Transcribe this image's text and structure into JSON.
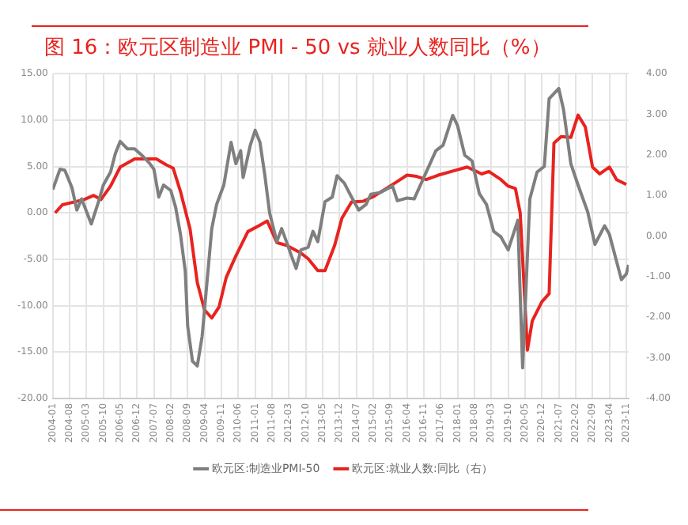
{
  "chart_data": {
    "type": "line",
    "title": "图 16：欧元区制造业 PMI - 50 vs 就业人数同比（%）",
    "xlim": [
      "2004-01",
      "2023-12"
    ],
    "xticks": [
      "2004-01",
      "2004-08",
      "2005-03",
      "2005-10",
      "2006-05",
      "2006-12",
      "2007-07",
      "2008-02",
      "2008-09",
      "2009-04",
      "2009-11",
      "2010-06",
      "2011-01",
      "2011-08",
      "2012-03",
      "2012-10",
      "2013-05",
      "2013-12",
      "2014-07",
      "2015-02",
      "2015-09",
      "2016-04",
      "2016-11",
      "2017-06",
      "2018-01",
      "2018-08",
      "2019-03",
      "2019-10",
      "2020-05",
      "2020-12",
      "2021-07",
      "2022-02",
      "2022-09",
      "2023-04",
      "2023-11"
    ],
    "ylim": [
      -20,
      15
    ],
    "yticks": [
      {
        "value": -20,
        "label": "-20.00"
      },
      {
        "value": -15,
        "label": "-15.00"
      },
      {
        "value": -10,
        "label": "-10.00"
      },
      {
        "value": -5,
        "label": "-5.00"
      },
      {
        "value": 0,
        "label": "0.00"
      },
      {
        "value": 5,
        "label": "5.00"
      },
      {
        "value": 10,
        "label": "10.00"
      },
      {
        "value": 15,
        "label": "15.00"
      }
    ],
    "y2lim": [
      -4,
      4
    ],
    "y2ticks": [
      {
        "value": -4,
        "label": "-4.00"
      },
      {
        "value": -3,
        "label": "-3.00"
      },
      {
        "value": -2,
        "label": "-2.00"
      },
      {
        "value": -1,
        "label": "-1.00"
      },
      {
        "value": 0,
        "label": "0.00"
      },
      {
        "value": 1,
        "label": "1.00"
      },
      {
        "value": 2,
        "label": "2.00"
      },
      {
        "value": 3,
        "label": "3.00"
      },
      {
        "value": 4,
        "label": "4.00"
      }
    ],
    "grid": true,
    "legend": "bottom",
    "marker": "none",
    "line_style": "solid",
    "series": [
      {
        "name": "欧元区:制造业PMI-50",
        "color": "#7f7f7f",
        "x": [
          "2004-01",
          "2004-04",
          "2004-06",
          "2004-09",
          "2004-11",
          "2005-01",
          "2005-05",
          "2005-08",
          "2005-10",
          "2006-01",
          "2006-03",
          "2006-05",
          "2006-08",
          "2006-11",
          "2007-02",
          "2007-05",
          "2007-07",
          "2007-09",
          "2007-11",
          "2008-02",
          "2008-04",
          "2008-06",
          "2008-08",
          "2008-09",
          "2008-11",
          "2009-01",
          "2009-03",
          "2009-05",
          "2009-07",
          "2009-09",
          "2009-12",
          "2010-03",
          "2010-05",
          "2010-07",
          "2010-08",
          "2010-11",
          "2011-01",
          "2011-03",
          "2011-05",
          "2011-07",
          "2011-10",
          "2011-12",
          "2012-02",
          "2012-04",
          "2012-06",
          "2012-08",
          "2012-11",
          "2013-01",
          "2013-03",
          "2013-06",
          "2013-09",
          "2013-11",
          "2014-02",
          "2014-05",
          "2014-08",
          "2014-11",
          "2015-01",
          "2015-05",
          "2015-10",
          "2015-12",
          "2016-04",
          "2016-07",
          "2016-12",
          "2017-04",
          "2017-07",
          "2017-11",
          "2018-01",
          "2018-04",
          "2018-07",
          "2018-10",
          "2019-01",
          "2019-04",
          "2019-07",
          "2019-10",
          "2020-02",
          "2020-04",
          "2020-07",
          "2020-10",
          "2021-01",
          "2021-03",
          "2021-07",
          "2021-09",
          "2021-12",
          "2022-03",
          "2022-07",
          "2022-10",
          "2023-02",
          "2023-04",
          "2023-09",
          "2023-11",
          "2023-12"
        ],
        "values": [
          2.5,
          4.7,
          4.6,
          2.7,
          0.3,
          1.5,
          -1.2,
          1.2,
          3.0,
          4.4,
          6.4,
          7.7,
          6.9,
          6.9,
          6.2,
          5.4,
          4.7,
          1.7,
          3.0,
          2.4,
          0.6,
          -2.3,
          -6.3,
          -12.2,
          -16.0,
          -16.5,
          -13.3,
          -7.5,
          -1.7,
          0.9,
          3.0,
          7.6,
          5.3,
          6.7,
          3.8,
          7.3,
          8.9,
          7.6,
          4.1,
          0.0,
          -3.1,
          -1.7,
          -3.1,
          -4.6,
          -6.0,
          -4.0,
          -3.7,
          -2.0,
          -3.1,
          1.2,
          1.7,
          4.0,
          3.2,
          1.7,
          0.3,
          0.9,
          2.0,
          2.2,
          2.9,
          1.3,
          1.6,
          1.5,
          4.4,
          6.7,
          7.3,
          10.5,
          9.4,
          6.2,
          5.6,
          2.1,
          0.9,
          -2.0,
          -2.6,
          -4.0,
          -0.8,
          -16.7,
          1.5,
          4.4,
          5.0,
          12.3,
          13.4,
          11.1,
          5.3,
          3.0,
          0.1,
          -3.4,
          -1.4,
          -2.3,
          -7.2,
          -6.6,
          -5.6
        ]
      },
      {
        "name": "欧元区:就业人数:同比（右）",
        "color": "#e8231f",
        "axis": "y2",
        "x": [
          "2004-02",
          "2004-05",
          "2004-10",
          "2005-02",
          "2005-06",
          "2005-09",
          "2006-01",
          "2006-05",
          "2006-11",
          "2007-03",
          "2007-08",
          "2007-12",
          "2008-03",
          "2008-06",
          "2008-10",
          "2009-01",
          "2009-04",
          "2009-07",
          "2009-10",
          "2010-01",
          "2010-05",
          "2010-10",
          "2011-03",
          "2011-06",
          "2011-10",
          "2012-02",
          "2012-08",
          "2012-11",
          "2013-03",
          "2013-06",
          "2013-10",
          "2014-01",
          "2014-05",
          "2014-10",
          "2015-02",
          "2015-09",
          "2016-04",
          "2016-08",
          "2016-12",
          "2017-05",
          "2017-11",
          "2018-05",
          "2018-11",
          "2019-02",
          "2019-07",
          "2019-10",
          "2020-01",
          "2020-03",
          "2020-06",
          "2020-08",
          "2020-12",
          "2021-03",
          "2021-05",
          "2021-08",
          "2021-12",
          "2022-03",
          "2022-06",
          "2022-09",
          "2022-12",
          "2023-04",
          "2023-07",
          "2023-11"
        ],
        "values": [
          0.57,
          0.77,
          0.84,
          0.9,
          1.0,
          0.9,
          1.23,
          1.7,
          1.9,
          1.9,
          1.9,
          1.76,
          1.67,
          1.1,
          0.17,
          -1.15,
          -1.82,
          -2.02,
          -1.75,
          -1.02,
          -0.49,
          0.11,
          0.27,
          0.37,
          -0.16,
          -0.23,
          -0.42,
          -0.56,
          -0.85,
          -0.85,
          -0.23,
          0.44,
          0.84,
          0.86,
          0.97,
          1.23,
          1.5,
          1.47,
          1.39,
          1.5,
          1.6,
          1.7,
          1.53,
          1.59,
          1.39,
          1.23,
          1.17,
          0.57,
          -2.81,
          -2.09,
          -1.62,
          -1.42,
          2.29,
          2.45,
          2.43,
          2.98,
          2.69,
          1.7,
          1.53,
          1.7,
          1.39,
          1.27
        ]
      }
    ]
  }
}
